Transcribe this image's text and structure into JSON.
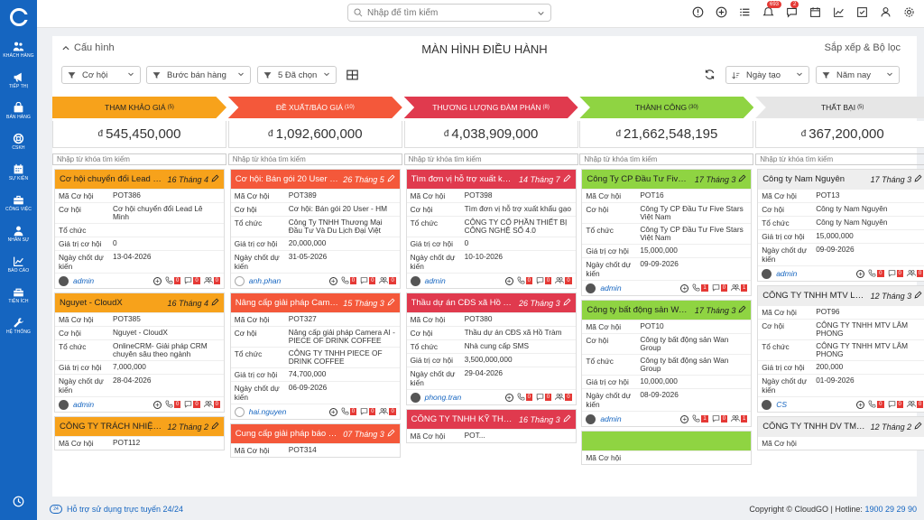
{
  "sidebar": {
    "items": [
      {
        "label": "Khách hàng",
        "icon": "users-icon"
      },
      {
        "label": "Tiếp thị",
        "icon": "megaphone-icon"
      },
      {
        "label": "Bán hàng",
        "icon": "cart-icon"
      },
      {
        "label": "CSKH",
        "icon": "lifebuoy-icon"
      },
      {
        "label": "Sự kiện",
        "icon": "calendar-icon"
      },
      {
        "label": "Công việc",
        "icon": "briefcase-icon"
      },
      {
        "label": "Nhân sự",
        "icon": "person-icon"
      },
      {
        "label": "Báo cáo",
        "icon": "chart-icon"
      },
      {
        "label": "Tiện ích",
        "icon": "toolbox-icon"
      },
      {
        "label": "Hệ thống",
        "icon": "wrench-icon"
      }
    ]
  },
  "topbar": {
    "search_placeholder": "Nhập để tìm kiếm",
    "notif_count": "693",
    "chat_count": "2"
  },
  "panel": {
    "config_label": "Cấu hình",
    "title": "MÀN HÌNH ĐIỀU HÀNH",
    "sort_filter_label": "Sắp xếp & Bộ lọc",
    "filters": {
      "module": "Cơ hội",
      "stage": "Bước bán hàng",
      "selected": "5 Đã chọn",
      "date_field": "Ngày tạo",
      "period": "Năm nay"
    },
    "search_placeholder": "Nhập từ khóa tìm kiếm"
  },
  "labels": {
    "code": "Mã Cơ hội",
    "opportunity": "Cơ hội",
    "org": "Tổ chức",
    "value": "Giá trị cơ hội",
    "close": "Ngày chốt dự kiến"
  },
  "columns": [
    {
      "name": "THAM KHẢO GIÁ",
      "count": "(5)",
      "total": "545,450,000",
      "currency": "đ",
      "color": "#f7a21b",
      "cards": [
        {
          "title": "Cơ hội chuyển đổi Lead Lê Minh",
          "date": "16 Tháng 4",
          "head_color": "#f7a21b",
          "head_text": "#222",
          "code": "POT386",
          "opp": "Cơ hội chuyển đổi Lead Lê Minh",
          "org": "",
          "value": "0",
          "close": "13-04-2026",
          "owner": "admin",
          "counts": [
            "0",
            "0",
            "0"
          ]
        },
        {
          "title": "Nguyet - CloudX",
          "date": "16 Tháng 4",
          "head_color": "#f7a21b",
          "head_text": "#222",
          "code": "POT385",
          "opp": "Nguyet - CloudX",
          "org": "OnlineCRM- Giải pháp CRM chuyên sâu theo ngành",
          "value": "7,000,000",
          "close": "28-04-2026",
          "owner": "admin",
          "counts": [
            "0",
            "0",
            "0"
          ]
        },
        {
          "title": "CÔNG TY TRÁCH NHIỆM H...",
          "date": "12 Tháng 2",
          "head_color": "#f7a21b",
          "head_text": "#222",
          "code": "POT112"
        }
      ]
    },
    {
      "name": "ĐỀ XUẤT/BÁO GIÁ",
      "count": "(10)",
      "total": "1,092,600,000",
      "currency": "đ",
      "color": "#f4583a",
      "cards": [
        {
          "title": "Cơ hội: Bán gói 20 User - HM",
          "date": "26 Tháng 5",
          "head_color": "#f4583a",
          "head_text": "#fff",
          "code": "POT389",
          "opp": "Cơ hội: Bán gói 20 User - HM",
          "org": "Công Ty TNHH Thương Mại Đầu Tư Và Du Lịch Đại Việt",
          "value": "20,000,000",
          "close": "31-05-2026",
          "owner": "anh.phan",
          "counts": [
            "0",
            "0",
            "0"
          ]
        },
        {
          "title": "Nâng cấp giải pháp Camera ...",
          "date": "15 Tháng 3",
          "head_color": "#f4583a",
          "head_text": "#fff",
          "code": "POT327",
          "opp": "Nâng cấp giải pháp Camera AI - PIECE OF DRINK COFFEE",
          "org": "CÔNG TY TNHH PIECE OF DRINK COFFEE",
          "value": "74,700,000",
          "close": "06-09-2026",
          "owner": "hai.nguyen",
          "counts": [
            "0",
            "0",
            "0"
          ]
        },
        {
          "title": "Cung cấp giải pháp báo mật...",
          "date": "07 Tháng 3",
          "head_color": "#f4583a",
          "head_text": "#fff",
          "code": "POT314"
        }
      ]
    },
    {
      "name": "THƯƠNG LƯỢNG ĐÀM PHÁN",
      "count": "(8)",
      "total": "4,038,909,000",
      "currency": "đ",
      "color": "#e03a4e",
      "cards": [
        {
          "title": "Tìm đơn vị hỗ trợ xuất khẩu ...",
          "date": "14 Tháng 7",
          "head_color": "#e03a4e",
          "head_text": "#fff",
          "code": "POT398",
          "opp": "Tìm đơn vị hỗ trợ xuất khẩu gạo",
          "org": "CÔNG TY CỔ PHẦN THIẾT BỊ CÔNG NGHỆ SỐ 4.0",
          "value": "0",
          "close": "10-10-2026",
          "owner": "admin",
          "counts": [
            "0",
            "0",
            "0"
          ]
        },
        {
          "title": "Thầu dự án CĐS xã Hồ Tràm",
          "date": "26 Tháng 3",
          "head_color": "#e03a4e",
          "head_text": "#fff",
          "code": "POT380",
          "opp": "Thầu dự án CĐS xã Hồ Tràm",
          "org": "Nhà cung cấp SMS",
          "value": "3,500,000,000",
          "close": "29-04-2026",
          "owner": "phong.tran",
          "counts": [
            "0",
            "0",
            "0"
          ]
        },
        {
          "title": "CÔNG TY TNHH KỸ THUẬT ...",
          "date": "16 Tháng 3",
          "head_color": "#e03a4e",
          "head_text": "#fff",
          "code": "POT..."
        }
      ]
    },
    {
      "name": "THÀNH CÔNG",
      "count": "(30)",
      "total": "21,662,548,195",
      "currency": "đ",
      "color": "#8fd442",
      "cards": [
        {
          "title": "Công Ty CP Đầu Tư Five Sta...",
          "date": "17 Tháng 3",
          "head_color": "#8fd442",
          "head_text": "#222",
          "code": "POT16",
          "opp": "Công Ty CP Đầu Tư Five Stars Việt Nam",
          "org": "Công Ty CP Đầu Tư Five Stars Việt Nam",
          "value": "15,000,000",
          "close": "09-09-2026",
          "owner": "admin",
          "counts": [
            "1",
            "0",
            "1"
          ]
        },
        {
          "title": "Công ty bất động sản Wan ...",
          "date": "17 Tháng 3",
          "head_color": "#8fd442",
          "head_text": "#222",
          "code": "POT10",
          "opp": "Công ty bất động sản Wan Group",
          "org": "Công ty bất động sản Wan Group",
          "value": "10,000,000",
          "close": "08-09-2026",
          "owner": "admin",
          "counts": [
            "1",
            "0",
            "1"
          ]
        },
        {
          "title": "",
          "date": "",
          "head_color": "#8fd442",
          "head_text": "#222",
          "code": ""
        }
      ]
    },
    {
      "name": "THẤT BẠI",
      "count": "(5)",
      "total": "367,200,000",
      "currency": "đ",
      "color": "#e6e6e6",
      "cards": [
        {
          "title": "Công ty Nam Nguyên",
          "date": "17 Tháng 3",
          "head_color": "#eeeeee",
          "head_text": "#222",
          "code": "POT13",
          "opp": "Công ty Nam Nguyên",
          "org": "Công ty Nam Nguyên",
          "value": "15,000,000",
          "close": "09-09-2026",
          "owner": "admin",
          "counts": [
            "0",
            "0",
            "0"
          ]
        },
        {
          "title": "CÔNG TY TNHH MTV LÂM ...",
          "date": "12 Tháng 3",
          "head_color": "#eeeeee",
          "head_text": "#222",
          "code": "POT96",
          "opp": "CÔNG TY TNHH MTV LÂM PHONG",
          "org": "CÔNG TY TNHH MTV LÂM PHONG",
          "value": "200,000",
          "close": "01-09-2026",
          "owner": "CS",
          "counts": [
            "0",
            "0",
            "0"
          ]
        },
        {
          "title": "CÔNG TY TNHH DV TM QU...",
          "date": "12 Tháng 2",
          "head_color": "#eeeeee",
          "head_text": "#222",
          "code": ""
        }
      ]
    }
  ],
  "footer": {
    "help": "Hỗ trợ sử dụng trực tuyến 24/24",
    "copyright": "Copyright © CloudGO | Hotline:",
    "hotline": "1900 29 29 90"
  }
}
